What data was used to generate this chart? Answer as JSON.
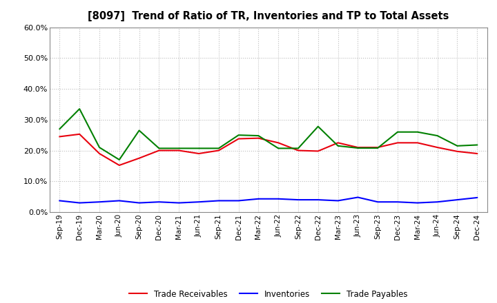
{
  "title": "[8097]  Trend of Ratio of TR, Inventories and TP to Total Assets",
  "x_labels": [
    "Sep-19",
    "Dec-19",
    "Mar-20",
    "Jun-20",
    "Sep-20",
    "Dec-20",
    "Mar-21",
    "Jun-21",
    "Sep-21",
    "Dec-21",
    "Mar-22",
    "Jun-22",
    "Sep-22",
    "Dec-22",
    "Mar-23",
    "Jun-23",
    "Sep-23",
    "Dec-23",
    "Mar-24",
    "Jun-24",
    "Sep-24",
    "Dec-24"
  ],
  "trade_receivables": [
    0.245,
    0.253,
    0.19,
    0.152,
    0.175,
    0.2,
    0.2,
    0.19,
    0.2,
    0.238,
    0.24,
    0.225,
    0.2,
    0.198,
    0.225,
    0.21,
    0.21,
    0.225,
    0.225,
    0.21,
    0.197,
    0.19
  ],
  "inventories": [
    0.037,
    0.03,
    0.033,
    0.037,
    0.03,
    0.033,
    0.03,
    0.033,
    0.037,
    0.037,
    0.043,
    0.043,
    0.04,
    0.04,
    0.037,
    0.048,
    0.033,
    0.033,
    0.03,
    0.033,
    0.04,
    0.047
  ],
  "trade_payables": [
    0.27,
    0.335,
    0.21,
    0.17,
    0.265,
    0.207,
    0.207,
    0.207,
    0.207,
    0.25,
    0.248,
    0.207,
    0.207,
    0.278,
    0.215,
    0.208,
    0.208,
    0.26,
    0.26,
    0.248,
    0.215,
    0.218
  ],
  "tr_color": "#e8000d",
  "inv_color": "#0000ff",
  "tp_color": "#008000",
  "ylim": [
    0.0,
    0.6
  ],
  "yticks": [
    0.0,
    0.1,
    0.2,
    0.3,
    0.4,
    0.5,
    0.6
  ],
  "background_color": "#ffffff",
  "grid_color": "#aaaaaa",
  "legend_labels": [
    "Trade Receivables",
    "Inventories",
    "Trade Payables"
  ]
}
